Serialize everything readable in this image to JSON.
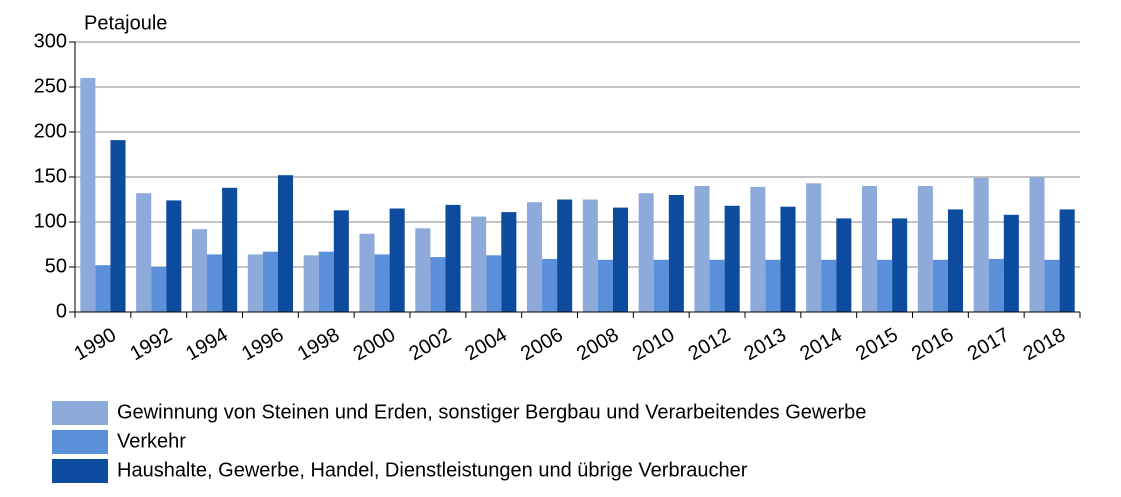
{
  "chart_data": {
    "type": "bar",
    "y_label": "Petajoule",
    "categories": [
      "1990",
      "1992",
      "1994",
      "1996",
      "1998",
      "2000",
      "2002",
      "2004",
      "2006",
      "2008",
      "2010",
      "2012",
      "2013",
      "2014",
      "2015",
      "2016",
      "2017",
      "2018"
    ],
    "series": [
      {
        "name": "Gewinnung von Steinen und Erden, sonstiger Bergbau und Verarbeitendes Gewerbe",
        "color": "#8eaadb",
        "values": [
          260,
          132,
          92,
          64,
          63,
          87,
          93,
          106,
          122,
          125,
          132,
          140,
          139,
          143,
          140,
          140,
          149,
          150
        ]
      },
      {
        "name": "Verkehr",
        "color": "#5b8fd9",
        "values": [
          52,
          50,
          64,
          67,
          67,
          64,
          61,
          63,
          59,
          58,
          58,
          58,
          58,
          58,
          58,
          58,
          59,
          58
        ]
      },
      {
        "name": "Haushalte, Gewerbe, Handel, Dienstleistungen und übrige Verbraucher",
        "color": "#0d4b9e",
        "values": [
          191,
          124,
          138,
          152,
          113,
          115,
          119,
          111,
          125,
          116,
          130,
          118,
          117,
          104,
          104,
          114,
          108,
          114
        ]
      }
    ],
    "ylim": [
      0,
      300
    ],
    "yticks": [
      0,
      50,
      100,
      150,
      200,
      250,
      300
    ],
    "grid": true
  }
}
